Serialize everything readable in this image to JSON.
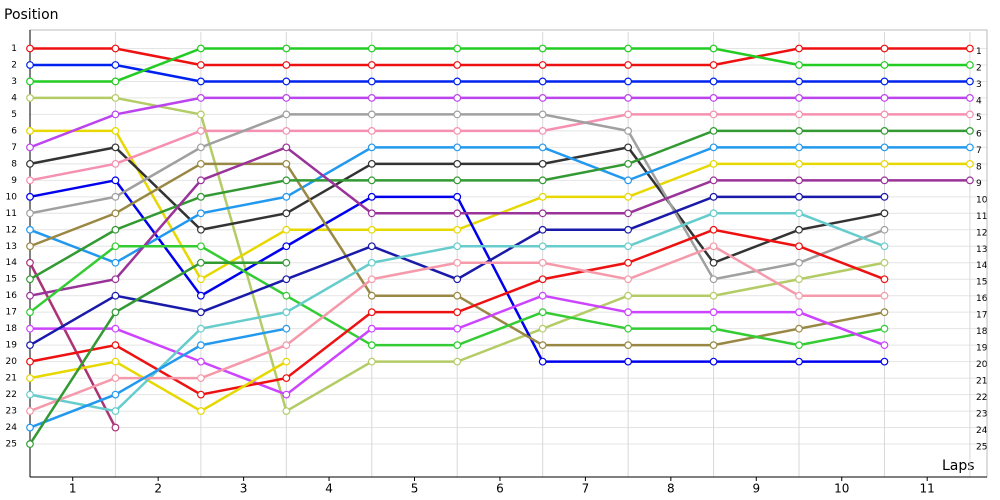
{
  "chart_data": {
    "type": "line",
    "ylabel": "Position",
    "xlabel": "Laps",
    "x": [
      0,
      1,
      2,
      3,
      4,
      5,
      6,
      7,
      8,
      9,
      10,
      11
    ],
    "xlim": [
      0,
      11.2
    ],
    "ylim": [
      27,
      0
    ],
    "inverted": true,
    "grid": true,
    "xticks": [
      {
        "value": 0.5,
        "label": "1"
      },
      {
        "value": 1.5,
        "label": "2"
      },
      {
        "value": 2.5,
        "label": "3"
      },
      {
        "value": 3.5,
        "label": "4"
      },
      {
        "value": 4.5,
        "label": "5"
      },
      {
        "value": 5.5,
        "label": "6"
      },
      {
        "value": 6.5,
        "label": "7"
      },
      {
        "value": 7.5,
        "label": "8"
      },
      {
        "value": 8.5,
        "label": "9"
      },
      {
        "value": 9.5,
        "label": "10"
      },
      {
        "value": 10.5,
        "label": "11"
      }
    ],
    "yticks": [
      1,
      2,
      3,
      4,
      5,
      6,
      7,
      8,
      9,
      10,
      11,
      12,
      13,
      14,
      15,
      16,
      17,
      18,
      19,
      20,
      21,
      22,
      23,
      24,
      25
    ],
    "series": [
      {
        "color": "#ee1111",
        "values": [
          1,
          1,
          2,
          2,
          2,
          2,
          2,
          2,
          2,
          1,
          1,
          1
        ]
      },
      {
        "color": "#0022ee",
        "values": [
          2,
          2,
          3,
          3,
          3,
          3,
          3,
          3,
          3,
          3,
          3,
          3
        ]
      },
      {
        "color": "#22cc22",
        "values": [
          3,
          3,
          1,
          1,
          1,
          1,
          1,
          1,
          1,
          2,
          2,
          2
        ]
      },
      {
        "color": "#b3cc66",
        "values": [
          4,
          4,
          5,
          23,
          20,
          20,
          18,
          16,
          16,
          15,
          14,
          null
        ]
      },
      {
        "color": "#e6d800",
        "values": [
          6,
          6,
          15,
          12,
          12,
          12,
          10,
          10,
          8,
          8,
          8,
          8
        ]
      },
      {
        "color": "#bb44ee",
        "values": [
          7,
          5,
          4,
          4,
          4,
          4,
          4,
          4,
          4,
          4,
          4,
          4
        ]
      },
      {
        "color": "#333333",
        "values": [
          8,
          7,
          12,
          11,
          8,
          8,
          8,
          7,
          14,
          12,
          11,
          null
        ]
      },
      {
        "color": "#f590b0",
        "values": [
          9,
          8,
          6,
          6,
          6,
          6,
          6,
          5,
          5,
          5,
          5,
          5
        ]
      },
      {
        "color": "#0000ee",
        "values": [
          10,
          9,
          16,
          13,
          10,
          10,
          20,
          20,
          20,
          20,
          20,
          null
        ]
      },
      {
        "color": "#a0a0a0",
        "values": [
          11,
          10,
          7,
          5,
          5,
          5,
          5,
          6,
          15,
          14,
          12,
          null
        ]
      },
      {
        "color": "#2299ee",
        "values": [
          12,
          14,
          11,
          10,
          7,
          7,
          7,
          9,
          7,
          7,
          7,
          7
        ]
      },
      {
        "color": "#998844",
        "values": [
          13,
          11,
          8,
          8,
          16,
          16,
          19,
          19,
          19,
          18,
          17,
          null
        ]
      },
      {
        "color": "#aa3377",
        "values": [
          14,
          24,
          null,
          null,
          null,
          null,
          null,
          null,
          null,
          null,
          null,
          null
        ]
      },
      {
        "color": "#339933",
        "values": [
          15,
          12,
          10,
          9,
          9,
          9,
          9,
          8,
          6,
          6,
          6,
          6
        ]
      },
      {
        "color": "#993399",
        "values": [
          16,
          15,
          9,
          7,
          11,
          11,
          11,
          11,
          9,
          9,
          9,
          9
        ]
      },
      {
        "color": "#33cc33",
        "values": [
          17,
          13,
          13,
          16,
          19,
          19,
          17,
          18,
          18,
          19,
          18,
          null
        ]
      },
      {
        "color": "#cc44ff",
        "values": [
          18,
          18,
          20,
          22,
          18,
          18,
          16,
          17,
          17,
          17,
          19,
          null
        ]
      },
      {
        "color": "#1a1aaa",
        "values": [
          19,
          16,
          17,
          15,
          13,
          15,
          12,
          12,
          10,
          10,
          10,
          null
        ]
      },
      {
        "color": "#ee1111",
        "values": [
          20,
          19,
          22,
          21,
          17,
          17,
          15,
          14,
          12,
          13,
          15,
          null
        ]
      },
      {
        "color": "#e6d800",
        "values": [
          21,
          20,
          23,
          20,
          null,
          null,
          null,
          null,
          null,
          null,
          null,
          null
        ]
      },
      {
        "color": "#66cccc",
        "values": [
          22,
          23,
          18,
          17,
          14,
          13,
          13,
          13,
          11,
          11,
          13,
          null
        ]
      },
      {
        "color": "#f59aaa",
        "values": [
          23,
          21,
          21,
          19,
          15,
          14,
          14,
          15,
          13,
          16,
          16,
          null
        ]
      },
      {
        "color": "#2299ee",
        "values": [
          24,
          22,
          19,
          18,
          null,
          null,
          null,
          null,
          null,
          null,
          null,
          null
        ]
      },
      {
        "color": "#339933",
        "values": [
          25,
          17,
          14,
          14,
          null,
          null,
          null,
          null,
          null,
          null,
          null,
          null
        ]
      }
    ]
  }
}
